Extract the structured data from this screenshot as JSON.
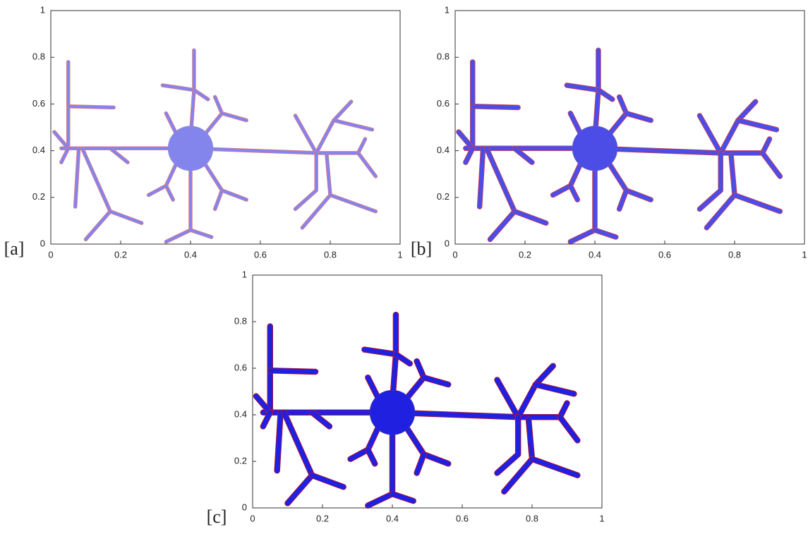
{
  "panels": [
    {
      "label": "[a]",
      "xlim": [
        0,
        1
      ],
      "ylim": [
        0,
        1
      ],
      "xticks": [
        0,
        0.2,
        0.4,
        0.6,
        0.8,
        1
      ],
      "yticks": [
        0,
        0.2,
        0.4,
        0.6,
        0.8,
        1
      ]
    },
    {
      "label": "[b]",
      "xlim": [
        0,
        1
      ],
      "ylim": [
        0,
        1
      ],
      "xticks": [
        0,
        0.2,
        0.4,
        0.6,
        0.8,
        1
      ],
      "yticks": [
        0,
        0.2,
        0.4,
        0.6,
        0.8,
        1
      ]
    },
    {
      "label": "[c]",
      "xlim": [
        0,
        1
      ],
      "ylim": [
        0,
        1
      ],
      "xticks": [
        0,
        0.2,
        0.4,
        0.6,
        0.8,
        1
      ],
      "yticks": [
        0,
        0.2,
        0.4,
        0.6,
        0.8,
        1
      ]
    }
  ]
}
